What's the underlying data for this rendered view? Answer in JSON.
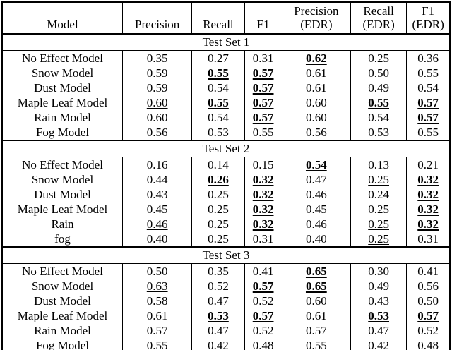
{
  "table": {
    "columns": [
      {
        "label": "Model",
        "lines": [
          "Model"
        ]
      },
      {
        "label": "Precision",
        "lines": [
          "Precision"
        ]
      },
      {
        "label": "Recall",
        "lines": [
          "Recall"
        ]
      },
      {
        "label": "F1",
        "lines": [
          "F1"
        ]
      },
      {
        "label": "Precision (EDR)",
        "lines": [
          "Precision",
          "(EDR)"
        ]
      },
      {
        "label": "Recall (EDR)",
        "lines": [
          "Recall",
          "(EDR)"
        ]
      },
      {
        "label": "F1 (EDR)",
        "lines": [
          "F1",
          "(EDR)"
        ]
      }
    ],
    "sections": [
      {
        "title": "Test Set 1",
        "rows": [
          {
            "model": "No Effect Model",
            "values": [
              {
                "v": "0.35",
                "style": "plain"
              },
              {
                "v": "0.27",
                "style": "plain"
              },
              {
                "v": "0.31",
                "style": "plain"
              },
              {
                "v": "0.62",
                "style": "bold-underline"
              },
              {
                "v": "0.25",
                "style": "plain"
              },
              {
                "v": "0.36",
                "style": "plain"
              }
            ]
          },
          {
            "model": "Snow Model",
            "values": [
              {
                "v": "0.59",
                "style": "plain"
              },
              {
                "v": "0.55",
                "style": "bold-underline"
              },
              {
                "v": "0.57",
                "style": "bold-underline"
              },
              {
                "v": "0.61",
                "style": "plain"
              },
              {
                "v": "0.50",
                "style": "plain"
              },
              {
                "v": "0.55",
                "style": "plain"
              }
            ]
          },
          {
            "model": "Dust Model",
            "values": [
              {
                "v": "0.59",
                "style": "plain"
              },
              {
                "v": "0.54",
                "style": "plain"
              },
              {
                "v": "0.57",
                "style": "bold-underline"
              },
              {
                "v": "0.61",
                "style": "plain"
              },
              {
                "v": "0.49",
                "style": "plain"
              },
              {
                "v": "0.54",
                "style": "plain"
              }
            ]
          },
          {
            "model": "Maple Leaf Model",
            "values": [
              {
                "v": "0.60",
                "style": "underline"
              },
              {
                "v": "0.55",
                "style": "bold-underline"
              },
              {
                "v": "0.57",
                "style": "bold-underline"
              },
              {
                "v": "0.60",
                "style": "plain"
              },
              {
                "v": "0.55",
                "style": "bold-underline"
              },
              {
                "v": "0.57",
                "style": "bold-underline"
              }
            ]
          },
          {
            "model": "Rain Model",
            "values": [
              {
                "v": "0.60",
                "style": "underline"
              },
              {
                "v": "0.54",
                "style": "plain"
              },
              {
                "v": "0.57",
                "style": "bold-underline"
              },
              {
                "v": "0.60",
                "style": "plain"
              },
              {
                "v": "0.54",
                "style": "plain"
              },
              {
                "v": "0.57",
                "style": "bold-underline"
              }
            ]
          },
          {
            "model": "Fog Model",
            "values": [
              {
                "v": "0.56",
                "style": "plain"
              },
              {
                "v": "0.53",
                "style": "plain"
              },
              {
                "v": "0.55",
                "style": "plain"
              },
              {
                "v": "0.56",
                "style": "plain"
              },
              {
                "v": "0.53",
                "style": "plain"
              },
              {
                "v": "0.55",
                "style": "plain"
              }
            ]
          }
        ]
      },
      {
        "title": "Test Set 2",
        "rows": [
          {
            "model": "No Effect Model",
            "values": [
              {
                "v": "0.16",
                "style": "plain"
              },
              {
                "v": "0.14",
                "style": "plain"
              },
              {
                "v": "0.15",
                "style": "plain"
              },
              {
                "v": "0.54",
                "style": "bold-underline"
              },
              {
                "v": "0.13",
                "style": "plain"
              },
              {
                "v": "0.21",
                "style": "plain"
              }
            ]
          },
          {
            "model": "Snow Model",
            "values": [
              {
                "v": "0.44",
                "style": "plain"
              },
              {
                "v": "0.26",
                "style": "bold-underline"
              },
              {
                "v": "0.32",
                "style": "bold-underline"
              },
              {
                "v": "0.47",
                "style": "plain"
              },
              {
                "v": "0.25",
                "style": "underline"
              },
              {
                "v": "0.32",
                "style": "bold-underline"
              }
            ]
          },
          {
            "model": "Dust Model",
            "values": [
              {
                "v": "0.43",
                "style": "plain"
              },
              {
                "v": "0.25",
                "style": "plain"
              },
              {
                "v": "0.32",
                "style": "bold-underline"
              },
              {
                "v": "0.46",
                "style": "plain"
              },
              {
                "v": "0.24",
                "style": "plain"
              },
              {
                "v": "0.32",
                "style": "bold-underline"
              }
            ]
          },
          {
            "model": "Maple Leaf Model",
            "values": [
              {
                "v": "0.45",
                "style": "plain"
              },
              {
                "v": "0.25",
                "style": "plain"
              },
              {
                "v": "0.32",
                "style": "bold-underline"
              },
              {
                "v": "0.45",
                "style": "plain"
              },
              {
                "v": "0.25",
                "style": "underline"
              },
              {
                "v": "0.32",
                "style": "bold-underline"
              }
            ]
          },
          {
            "model": "Rain",
            "values": [
              {
                "v": "0.46",
                "style": "underline"
              },
              {
                "v": "0.25",
                "style": "plain"
              },
              {
                "v": "0.32",
                "style": "bold-underline"
              },
              {
                "v": "0.46",
                "style": "plain"
              },
              {
                "v": "0.25",
                "style": "underline"
              },
              {
                "v": "0.32",
                "style": "bold-underline"
              }
            ]
          },
          {
            "model": "fog",
            "values": [
              {
                "v": "0.40",
                "style": "plain"
              },
              {
                "v": "0.25",
                "style": "plain"
              },
              {
                "v": "0.31",
                "style": "plain"
              },
              {
                "v": "0.40",
                "style": "plain"
              },
              {
                "v": "0.25",
                "style": "underline"
              },
              {
                "v": "0.31",
                "style": "plain"
              }
            ]
          }
        ]
      },
      {
        "title": "Test Set 3",
        "rows": [
          {
            "model": "No Effect Model",
            "values": [
              {
                "v": "0.50",
                "style": "plain"
              },
              {
                "v": "0.35",
                "style": "plain"
              },
              {
                "v": "0.41",
                "style": "plain"
              },
              {
                "v": "0.65",
                "style": "bold-underline"
              },
              {
                "v": "0.30",
                "style": "plain"
              },
              {
                "v": "0.41",
                "style": "plain"
              }
            ]
          },
          {
            "model": "Snow Model",
            "values": [
              {
                "v": "0.63",
                "style": "underline"
              },
              {
                "v": "0.52",
                "style": "plain"
              },
              {
                "v": "0.57",
                "style": "bold-underline"
              },
              {
                "v": "0.65",
                "style": "bold-underline"
              },
              {
                "v": "0.49",
                "style": "plain"
              },
              {
                "v": "0.56",
                "style": "plain"
              }
            ]
          },
          {
            "model": "Dust Model",
            "values": [
              {
                "v": "0.58",
                "style": "plain"
              },
              {
                "v": "0.47",
                "style": "plain"
              },
              {
                "v": "0.52",
                "style": "plain"
              },
              {
                "v": "0.60",
                "style": "plain"
              },
              {
                "v": "0.43",
                "style": "plain"
              },
              {
                "v": "0.50",
                "style": "plain"
              }
            ]
          },
          {
            "model": "Maple Leaf Model",
            "values": [
              {
                "v": "0.61",
                "style": "plain"
              },
              {
                "v": "0.53",
                "style": "bold-underline"
              },
              {
                "v": "0.57",
                "style": "bold-underline"
              },
              {
                "v": "0.61",
                "style": "plain"
              },
              {
                "v": "0.53",
                "style": "bold-underline"
              },
              {
                "v": "0.57",
                "style": "bold-underline"
              }
            ]
          },
          {
            "model": "Rain Model",
            "values": [
              {
                "v": "0.57",
                "style": "plain"
              },
              {
                "v": "0.47",
                "style": "plain"
              },
              {
                "v": "0.52",
                "style": "plain"
              },
              {
                "v": "0.57",
                "style": "plain"
              },
              {
                "v": "0.47",
                "style": "plain"
              },
              {
                "v": "0.52",
                "style": "plain"
              }
            ]
          },
          {
            "model": "Fog Model",
            "values": [
              {
                "v": "0.55",
                "style": "plain"
              },
              {
                "v": "0.42",
                "style": "plain"
              },
              {
                "v": "0.48",
                "style": "plain"
              },
              {
                "v": "0.55",
                "style": "plain"
              },
              {
                "v": "0.42",
                "style": "plain"
              },
              {
                "v": "0.48",
                "style": "plain"
              }
            ]
          }
        ]
      }
    ]
  }
}
